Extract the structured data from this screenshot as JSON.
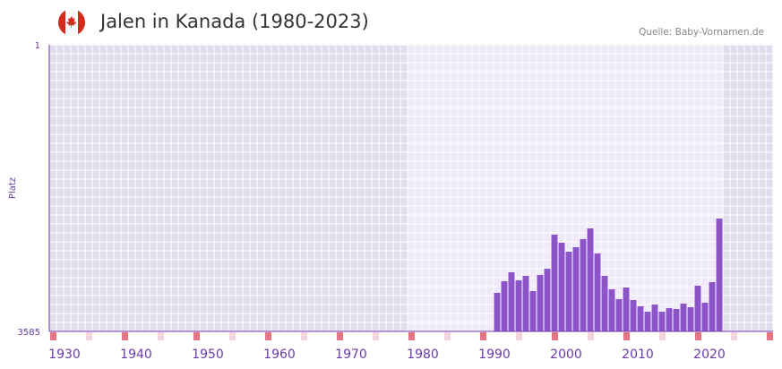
{
  "header": {
    "title": "Jalen in Kanada (1980-2023)",
    "source": "Quelle: Baby-Vornamen.de",
    "flag_icon": "canada-flag"
  },
  "chart_data": {
    "type": "bar",
    "title": "Jalen in Kanada (1980-2023)",
    "ylabel": "Platz",
    "xlabel": "",
    "y_axis_inverted": true,
    "ylim": [
      3585,
      1
    ],
    "y_ticks": [
      "1",
      "3585"
    ],
    "xlim": [
      1928,
      2029
    ],
    "x_ticks": [
      1930,
      1940,
      1950,
      1960,
      1970,
      1980,
      1990,
      2000,
      2010,
      2020
    ],
    "x": [
      1990,
      1991,
      1992,
      1993,
      1994,
      1995,
      1996,
      1997,
      1998,
      1999,
      2000,
      2001,
      2002,
      2003,
      2004,
      2005,
      2006,
      2007,
      2008,
      2009,
      2010,
      2011,
      2012,
      2013,
      2014,
      2015,
      2016,
      2017,
      2018,
      2019,
      2020,
      2021
    ],
    "values": [
      3103,
      2958,
      2846,
      2947,
      2891,
      3081,
      2879,
      2801,
      2375,
      2476,
      2588,
      2532,
      2431,
      2297,
      2611,
      2891,
      3059,
      3182,
      3036,
      3193,
      3271,
      3339,
      3249,
      3339,
      3294,
      3305,
      3238,
      3283,
      3014,
      3227,
      2969,
      2174
    ],
    "colors": {
      "bar": "#8b55c8",
      "axis": "#6a3aa8",
      "bg_dark": "#e2dded",
      "bg_light": "#efeaf8",
      "marker": "#e57380",
      "marker_light": "#f5d6e0",
      "tick_text": "#6a3aa8"
    }
  }
}
